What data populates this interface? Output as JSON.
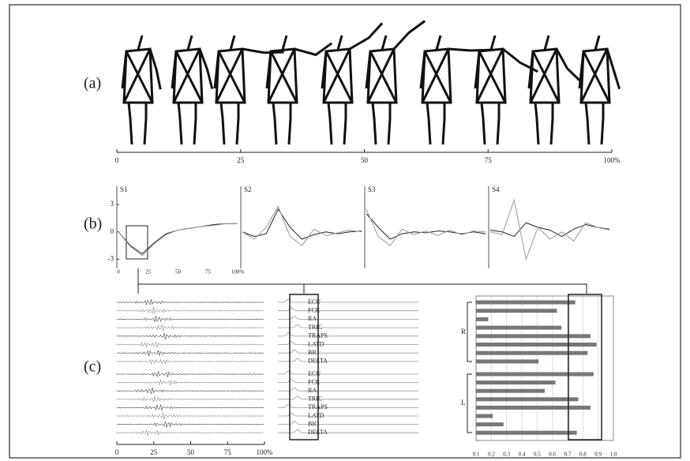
{
  "chart_data": [
    {
      "type": "skeleton",
      "label": "(a)",
      "xlim": [
        0,
        100
      ],
      "xticks": [
        0,
        25,
        50,
        75,
        {
          "value": 100,
          "label": "100%"
        }
      ]
    },
    {
      "type": "line",
      "label": "(b)",
      "title": "S1",
      "x": [
        0,
        10,
        20,
        30,
        40,
        50,
        60,
        70,
        80,
        90,
        100
      ],
      "ylim": [
        -4,
        5
      ],
      "yticks": [
        3,
        0,
        -3
      ],
      "xlim": [
        0,
        100
      ],
      "xticks": [
        0,
        25,
        50,
        75,
        {
          "value": 100,
          "label": "100%"
        }
      ],
      "series": [
        {
          "color": "#222",
          "values": [
            0,
            -1.5,
            -2.4,
            -1.2,
            -0.2,
            0.2,
            0.4,
            0.6,
            0.8,
            0.9,
            0.9
          ]
        },
        {
          "color": "#999",
          "values": [
            0,
            -1.6,
            -2.6,
            -1.3,
            -0.3,
            0.2,
            0.4,
            0.6,
            0.7,
            0.9,
            0.9
          ]
        }
      ]
    },
    {
      "type": "line",
      "title": "S2",
      "x": [
        0,
        10,
        20,
        30,
        40,
        50,
        60,
        70,
        80,
        90,
        100
      ],
      "ylim": [
        -4,
        5
      ],
      "xlim": [
        0,
        100
      ],
      "series": [
        {
          "color": "#222",
          "values": [
            0,
            -0.5,
            -0.2,
            2.5,
            0.5,
            -0.8,
            -0.3,
            0,
            -0.2,
            0,
            0.1
          ]
        },
        {
          "color": "#999",
          "values": [
            0,
            -0.8,
            0.5,
            2.8,
            -0.5,
            -1.5,
            0.3,
            -0.4,
            -0.1,
            0.2,
            0
          ]
        }
      ]
    },
    {
      "type": "line",
      "title": "S3",
      "x": [
        0,
        10,
        20,
        30,
        40,
        50,
        60,
        70,
        80,
        90,
        100
      ],
      "ylim": [
        -4,
        5
      ],
      "xlim": [
        0,
        100
      ],
      "series": [
        {
          "color": "#222",
          "values": [
            2,
            0.5,
            -0.8,
            -0.2,
            0,
            -0.1,
            0.1,
            0,
            -0.2,
            0,
            -0.2
          ]
        },
        {
          "color": "#999",
          "values": [
            2.5,
            -0.5,
            -1.5,
            0.3,
            -0.3,
            0.1,
            -0.4,
            0.2,
            -0.3,
            0.1,
            0
          ]
        }
      ]
    },
    {
      "type": "line",
      "title": "S4",
      "x": [
        0,
        10,
        20,
        30,
        40,
        50,
        60,
        70,
        80,
        90,
        100
      ],
      "ylim": [
        -4,
        5
      ],
      "xlim": [
        0,
        100
      ],
      "series": [
        {
          "color": "#222",
          "values": [
            0.2,
            0,
            -0.5,
            1,
            0.5,
            0.2,
            -0.5,
            0.3,
            0.8,
            0.5,
            0.3
          ]
        },
        {
          "color": "#999",
          "values": [
            0,
            -0.3,
            3.5,
            -3,
            0.5,
            -0.8,
            0,
            -1,
            1,
            0.5,
            0.2
          ]
        }
      ]
    },
    {
      "type": "emg",
      "label": "(c)",
      "xlim": [
        0,
        100
      ],
      "xticks": [
        0,
        25,
        50,
        75,
        {
          "value": 100,
          "label": "100%"
        }
      ]
    },
    {
      "type": "hbar",
      "groups": [
        "R",
        "L"
      ],
      "categories": [
        "ECU",
        "FCR",
        "RA",
        "TRIC",
        "TRAPS",
        "LATD",
        "BIC",
        "DELTA",
        "ECU",
        "FCR",
        "RA",
        "TRIC",
        "TRAPS",
        "LATD",
        "BIC",
        "DELTA"
      ],
      "values": [
        0.75,
        0.63,
        0.18,
        0.66,
        0.85,
        0.89,
        0.83,
        0.51,
        0.87,
        0.62,
        0.55,
        0.77,
        0.85,
        0.21,
        0.28,
        0.76
      ],
      "color": "#777",
      "xlim": [
        0.1,
        1
      ],
      "xticks": [
        0.1,
        0.2,
        0.3,
        0.4,
        0.5,
        0.6,
        0.7,
        0.8,
        0.9,
        {
          "value": 1,
          "label": "1.0"
        }
      ]
    }
  ]
}
